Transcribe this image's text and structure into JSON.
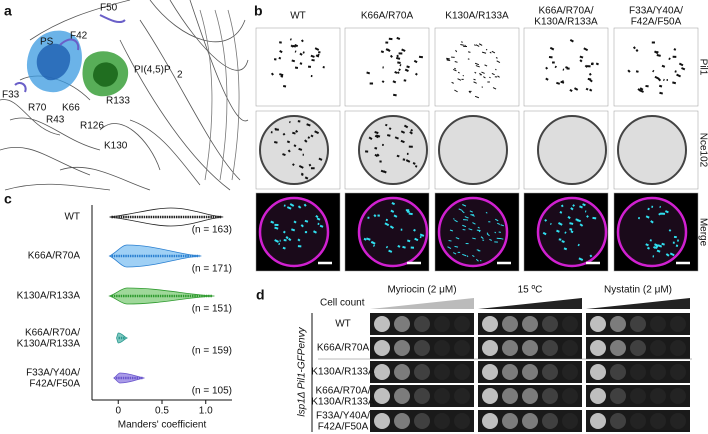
{
  "panel_labels": [
    "a",
    "b",
    "c",
    "d"
  ],
  "structure": {
    "labels": [
      {
        "text": "PS",
        "color": "#3a8fd6"
      },
      {
        "text": "F42",
        "color": "#6a5fc8"
      },
      {
        "text": "F50",
        "color": "#6a5fc8"
      },
      {
        "text": "F33",
        "color": "#6a5fc8"
      },
      {
        "text": "R70",
        "color": "#2a5ab8"
      },
      {
        "text": "K66",
        "color": "#2a5ab8"
      },
      {
        "text": "R133",
        "color": "#2e8b2e"
      },
      {
        "text": "K130",
        "color": "#2e8b2e"
      },
      {
        "text": "R43",
        "color": "#333333"
      },
      {
        "text": "R126",
        "color": "#333333"
      }
    ],
    "lipid": "PI(4,5)P",
    "lipid_subscript": "2"
  },
  "microscopy": {
    "columns": [
      "WT",
      "K66A/R70A",
      "K130A/R133A",
      "K66A/R70A/\nK130A/R133A",
      "F33A/Y40A/\nF42A/F50A"
    ],
    "rows": [
      {
        "text": "Pil1",
        "color": "#19c6d6"
      },
      {
        "text": "Nce102",
        "color": "#d61fd6"
      },
      {
        "text": "Merge",
        "color": "#111111"
      }
    ]
  },
  "chart_data": {
    "type": "violin",
    "categories": [
      "WT",
      "K66A/R70A",
      "K130A/R133A",
      "K66A/R70A/\nK130A/R133A",
      "F33A/Y40A/\nF42A/F50A"
    ],
    "mins": [
      -0.1,
      -0.1,
      -0.1,
      -0.02,
      -0.05
    ],
    "medians": [
      0.6,
      0.1,
      0.1,
      0.0,
      0.02
    ],
    "maxs": [
      1.2,
      0.95,
      1.1,
      0.1,
      0.3
    ],
    "colors": [
      "#ffffff",
      "#9fd0f5",
      "#9fd89a",
      "#7fc8c0",
      "#a99be8"
    ],
    "edge_colors": [
      "#222222",
      "#2a7fd0",
      "#2e9a2e",
      "#2a9a90",
      "#6a55cc"
    ],
    "n_labels": [
      "(n = 163)",
      "(n = 171)",
      "(n = 151)",
      "(n = 159)",
      "(n = 105)"
    ],
    "xlabel": "Manders' coefficient",
    "xlim": [
      -0.3,
      1.3
    ],
    "xticks": [
      0,
      0.5,
      {
        "value": 1,
        "label": "1.0"
      }
    ]
  },
  "spot_assay": {
    "header": "Cell count",
    "conditions": [
      "Myriocin (2 μM)",
      "15 ºC",
      "Nystatin (2 μM)"
    ],
    "strains": [
      "WT",
      "K66A/R70A",
      "K130A/R133A",
      "K66A/R70A/\nK130A/R133A",
      "F33A/Y40A/\nF42A/F50A"
    ],
    "ylabel": "lsp1Δ Pil1-GFPenvy"
  }
}
